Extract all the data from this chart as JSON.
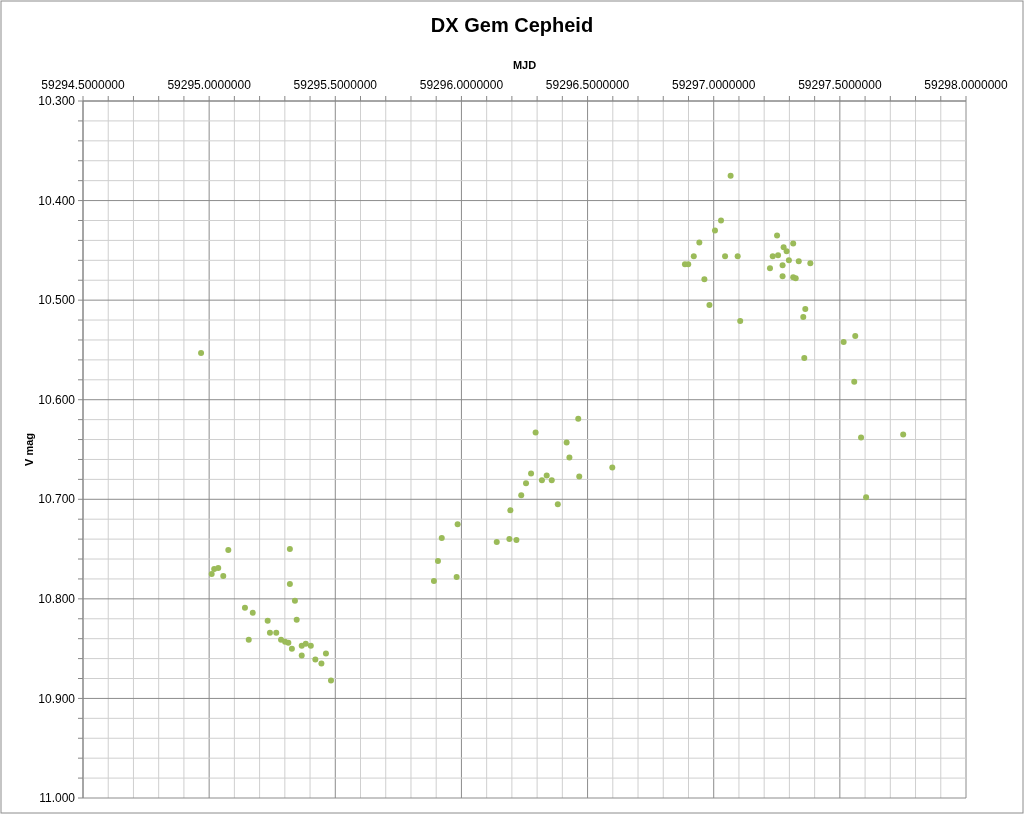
{
  "chart_data": {
    "type": "scatter",
    "title": "DX Gem Cepheid",
    "xlabel": "MJD",
    "ylabel": "V mag",
    "marker": "circle",
    "grid": true,
    "color": "#9bbb59",
    "x": [
      59294.968,
      59295.076,
      59295.32,
      59295.01,
      59295.02,
      59295.036,
      59295.056,
      59295.32,
      59295.34,
      59295.142,
      59295.173,
      59295.232,
      59295.347,
      59295.157,
      59295.241,
      59295.266,
      59295.285,
      59295.301,
      59295.314,
      59295.328,
      59295.367,
      59295.383,
      59295.403,
      59295.367,
      59295.463,
      59295.421,
      59295.445,
      59295.483,
      59296.463,
      59296.294,
      59296.417,
      59296.428,
      59296.598,
      59296.276,
      59296.338,
      59296.319,
      59296.358,
      59296.256,
      59296.467,
      59296.237,
      59296.382,
      59296.194,
      59295.985,
      59295.922,
      59296.19,
      59296.218,
      59296.14,
      59295.907,
      59295.891,
      59295.981,
      59297.067,
      59297.029,
      59297.005,
      59296.943,
      59296.921,
      59296.886,
      59296.899,
      59297.045,
      59297.095,
      59296.963,
      59296.983,
      59297.105,
      59297.251,
      59297.315,
      59297.277,
      59297.289,
      59297.234,
      59297.255,
      59297.298,
      59297.337,
      59297.383,
      59297.223,
      59297.273,
      59297.273,
      59297.315,
      59297.325,
      59297.363,
      59297.355,
      59297.561,
      59297.515,
      59297.359,
      59297.557,
      59297.751,
      59297.584,
      59297.604
    ],
    "values": [
      10.553,
      10.751,
      10.75,
      10.775,
      10.77,
      10.769,
      10.777,
      10.785,
      10.802,
      10.809,
      10.814,
      10.822,
      10.821,
      10.841,
      10.834,
      10.834,
      10.841,
      10.843,
      10.844,
      10.85,
      10.847,
      10.845,
      10.847,
      10.857,
      10.855,
      10.861,
      10.865,
      10.882,
      10.619,
      10.633,
      10.643,
      10.658,
      10.668,
      10.674,
      10.676,
      10.681,
      10.681,
      10.684,
      10.677,
      10.696,
      10.705,
      10.711,
      10.725,
      10.739,
      10.74,
      10.741,
      10.743,
      10.762,
      10.782,
      10.778,
      10.375,
      10.42,
      10.43,
      10.442,
      10.456,
      10.464,
      10.464,
      10.456,
      10.456,
      10.479,
      10.505,
      10.521,
      10.435,
      10.443,
      10.447,
      10.451,
      10.456,
      10.455,
      10.46,
      10.461,
      10.463,
      10.468,
      10.465,
      10.476,
      10.477,
      10.478,
      10.509,
      10.517,
      10.536,
      10.542,
      10.558,
      10.582,
      10.635,
      10.638,
      10.698
    ],
    "xlim": [
      59294.5,
      59298.0
    ],
    "xticks": [
      {
        "value": 59294.5,
        "label": "59294.5000000"
      },
      {
        "value": 59294.6,
        "label": null
      },
      {
        "value": 59294.7,
        "label": null
      },
      {
        "value": 59294.8,
        "label": null
      },
      {
        "value": 59294.9,
        "label": null
      },
      {
        "value": 59295.0,
        "label": "59295.0000000"
      },
      {
        "value": 59295.1,
        "label": null
      },
      {
        "value": 59295.2,
        "label": null
      },
      {
        "value": 59295.3,
        "label": null
      },
      {
        "value": 59295.4,
        "label": null
      },
      {
        "value": 59295.5,
        "label": "59295.5000000"
      },
      {
        "value": 59295.6,
        "label": null
      },
      {
        "value": 59295.7,
        "label": null
      },
      {
        "value": 59295.8,
        "label": null
      },
      {
        "value": 59295.9,
        "label": null
      },
      {
        "value": 59296.0,
        "label": "59296.0000000"
      },
      {
        "value": 59296.1,
        "label": null
      },
      {
        "value": 59296.2,
        "label": null
      },
      {
        "value": 59296.3,
        "label": null
      },
      {
        "value": 59296.4,
        "label": null
      },
      {
        "value": 59296.5,
        "label": "59296.5000000"
      },
      {
        "value": 59296.6,
        "label": null
      },
      {
        "value": 59296.7,
        "label": null
      },
      {
        "value": 59296.8,
        "label": null
      },
      {
        "value": 59296.9,
        "label": null
      },
      {
        "value": 59297.0,
        "label": "59297.0000000"
      },
      {
        "value": 59297.1,
        "label": null
      },
      {
        "value": 59297.2,
        "label": null
      },
      {
        "value": 59297.3,
        "label": null
      },
      {
        "value": 59297.4,
        "label": null
      },
      {
        "value": 59297.5,
        "label": "59297.5000000"
      },
      {
        "value": 59297.6,
        "label": null
      },
      {
        "value": 59297.7,
        "label": null
      },
      {
        "value": 59297.8,
        "label": null
      },
      {
        "value": 59297.9,
        "label": null
      },
      {
        "value": 59298.0,
        "label": "59298.0000000"
      }
    ],
    "ylim": [
      11.0,
      10.3
    ],
    "yticks": [
      {
        "value": 10.3,
        "label": "10.300"
      },
      {
        "value": 10.32,
        "label": null
      },
      {
        "value": 10.34,
        "label": null
      },
      {
        "value": 10.36,
        "label": null
      },
      {
        "value": 10.38,
        "label": null
      },
      {
        "value": 10.4,
        "label": "10.400"
      },
      {
        "value": 10.42,
        "label": null
      },
      {
        "value": 10.44,
        "label": null
      },
      {
        "value": 10.46,
        "label": null
      },
      {
        "value": 10.48,
        "label": null
      },
      {
        "value": 10.5,
        "label": "10.500"
      },
      {
        "value": 10.52,
        "label": null
      },
      {
        "value": 10.54,
        "label": null
      },
      {
        "value": 10.56,
        "label": null
      },
      {
        "value": 10.58,
        "label": null
      },
      {
        "value": 10.6,
        "label": "10.600"
      },
      {
        "value": 10.62,
        "label": null
      },
      {
        "value": 10.64,
        "label": null
      },
      {
        "value": 10.66,
        "label": null
      },
      {
        "value": 10.68,
        "label": null
      },
      {
        "value": 10.7,
        "label": "10.700"
      },
      {
        "value": 10.72,
        "label": null
      },
      {
        "value": 10.74,
        "label": null
      },
      {
        "value": 10.76,
        "label": null
      },
      {
        "value": 10.78,
        "label": null
      },
      {
        "value": 10.8,
        "label": "10.800"
      },
      {
        "value": 10.82,
        "label": null
      },
      {
        "value": 10.84,
        "label": null
      },
      {
        "value": 10.86,
        "label": null
      },
      {
        "value": 10.88,
        "label": null
      },
      {
        "value": 10.9,
        "label": "10.900"
      },
      {
        "value": 10.92,
        "label": null
      },
      {
        "value": 10.94,
        "label": null
      },
      {
        "value": 10.96,
        "label": null
      },
      {
        "value": 10.98,
        "label": null
      },
      {
        "value": 11.0,
        "label": "11.000"
      }
    ]
  }
}
